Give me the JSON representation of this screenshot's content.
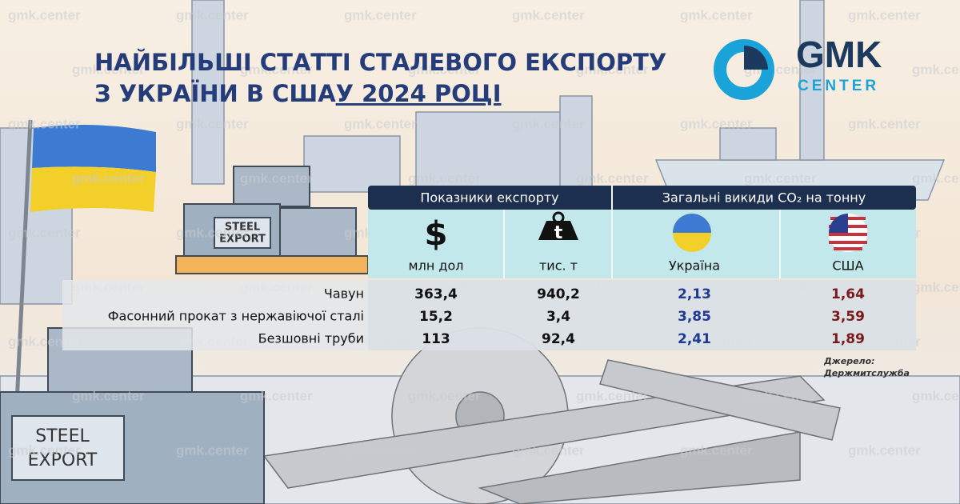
{
  "watermark": "gmk.center",
  "header": {
    "title_line1": "НАЙБІЛЬШІ СТАТТІ СТАЛЕВОГО ЕКСПОРТУ",
    "title_line2": "З УКРАЇНИ В США ",
    "title_line2_underlined": "У 2024 РОЦІ"
  },
  "logo": {
    "name": "GMK",
    "subtitle": "CENTER"
  },
  "crate_label": {
    "line1": "STEEL",
    "line2": "EXPORT"
  },
  "table": {
    "groups": [
      "Показники експорту",
      "Загальні викиди CO₂ на тонну"
    ],
    "columns": [
      {
        "icon": "$",
        "label": "млн дол"
      },
      {
        "icon": "t",
        "label": "тис. т"
      },
      {
        "label": "Україна"
      },
      {
        "label": "США"
      }
    ],
    "rows": [
      {
        "label": "Чавун",
        "values": [
          "363,4",
          "940,2",
          "2,13",
          "1,64"
        ]
      },
      {
        "label": "Фасонний прокат з нержавіючої сталі",
        "values": [
          "15,2",
          "3,4",
          "3,85",
          "3,59"
        ]
      },
      {
        "label": "Безшовні труби",
        "values": [
          "113",
          "92,4",
          "2,41",
          "1,89"
        ]
      }
    ]
  },
  "source": {
    "line1": "Джерело:",
    "line2": "Держмитслужба"
  }
}
